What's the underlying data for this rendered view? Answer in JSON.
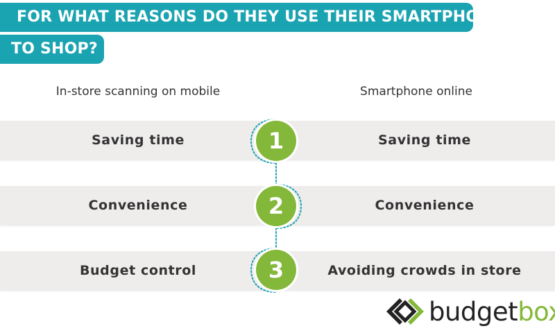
{
  "title": {
    "line1": "FOR WHAT REASONS DO THEY USE THEIR SMARTPHONE",
    "line2": "TO SHOP?"
  },
  "columns": {
    "left": "In-store scanning on mobile",
    "right": "Smartphone online"
  },
  "rows": [
    {
      "rank": "1",
      "left": "Saving time",
      "right": "Saving time"
    },
    {
      "rank": "2",
      "left": "Convenience",
      "right": "Convenience"
    },
    {
      "rank": "3",
      "left": "Budget control",
      "right": "Avoiding crowds in store"
    }
  ],
  "logo": {
    "part1": "budget",
    "part2": "box",
    "icon": "budgetbox-logo-icon"
  },
  "colors": {
    "teal": "#1aa3b1",
    "green": "#84b83a",
    "band": "#efecec"
  }
}
